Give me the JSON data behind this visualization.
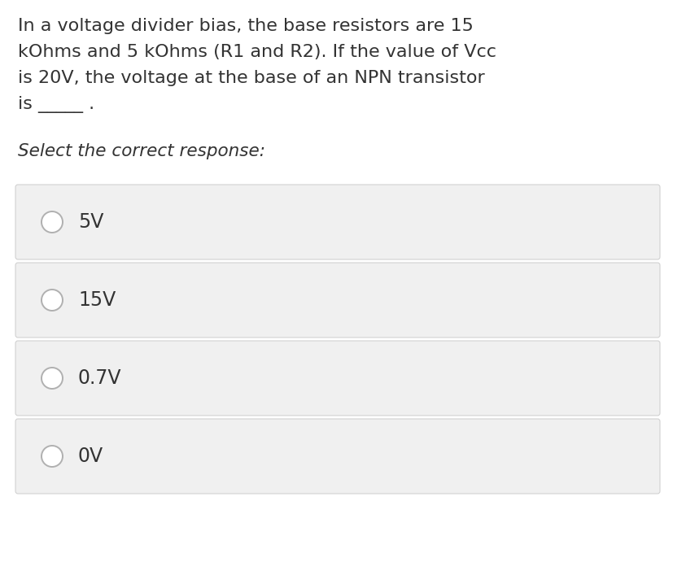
{
  "background_color": "#ffffff",
  "question_text_lines": [
    "In a voltage divider bias, the base resistors are 15",
    "kOhms and 5 kOhms (R1 and R2). If the value of Vcc",
    "is 20V, the voltage at the base of an NPN transistor",
    "is _____ ."
  ],
  "select_text": "Select the correct response:",
  "options": [
    "5V",
    "15V",
    "0.7V",
    "0V"
  ],
  "option_box_color": "#f0f0f0",
  "option_box_edge_color": "#cccccc",
  "circle_edge_color": "#b0b0b0",
  "circle_fill_color": "#ffffff",
  "text_color": "#333333",
  "question_fontsize": 16.0,
  "select_fontsize": 15.5,
  "option_fontsize": 17.0,
  "fig_width": 8.28,
  "fig_height": 7.07,
  "dpi": 100
}
